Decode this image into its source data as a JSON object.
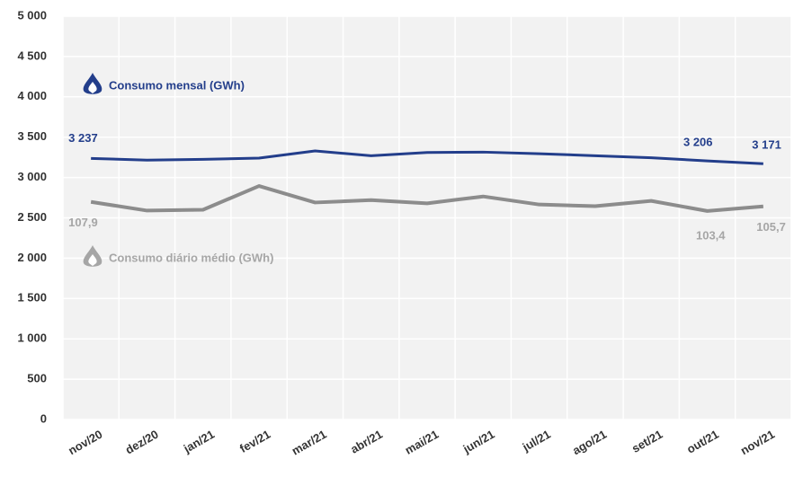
{
  "chart_data": {
    "type": "line",
    "categories": [
      "nov/20",
      "dez/20",
      "jan/21",
      "fev/21",
      "mar/21",
      "abr/21",
      "mai/21",
      "jun/21",
      "jul/21",
      "ago/21",
      "set/21",
      "out/21",
      "nov/21"
    ],
    "series": [
      {
        "name": "Consumo mensal (GWh)",
        "color": "#233e8b",
        "values": [
          3237,
          3215,
          3225,
          3240,
          3330,
          3270,
          3310,
          3315,
          3295,
          3270,
          3245,
          3206,
          3171
        ],
        "value_labels": [
          "3 237",
          null,
          null,
          null,
          null,
          null,
          null,
          null,
          null,
          null,
          null,
          "3 206",
          "3 171"
        ]
      },
      {
        "name": "Consumo diário médio (GWh)",
        "color": "#8c8c8c",
        "axis": "y2",
        "values": [
          107.9,
          103.6,
          104,
          115.8,
          107.6,
          108.8,
          107.2,
          110.6,
          106.6,
          105.8,
          108.4,
          103.4,
          105.7
        ],
        "value_labels": [
          "107,9",
          null,
          null,
          null,
          null,
          null,
          null,
          null,
          null,
          null,
          null,
          "103,4",
          "105,7"
        ]
      }
    ],
    "ylim": [
      0,
      5000
    ],
    "yticks": [
      0,
      500,
      {
        "value": 1000,
        "label": "1 000"
      },
      {
        "value": 1500,
        "label": "1 500"
      },
      {
        "value": 2000,
        "label": "2 000"
      },
      {
        "value": 2500,
        "label": "2 500"
      },
      {
        "value": 3000,
        "label": "3 000"
      },
      {
        "value": 3500,
        "label": "3 500"
      },
      {
        "value": 4000,
        "label": "4 000"
      },
      {
        "value": 4500,
        "label": "4 500"
      },
      {
        "value": 5000,
        "label": "5 000"
      }
    ],
    "y2lim": [
      0,
      200
    ],
    "grid": true
  }
}
